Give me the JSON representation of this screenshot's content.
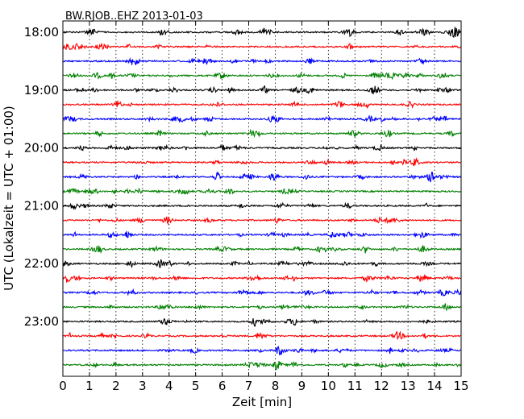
{
  "chart_data": {
    "type": "line",
    "title": "BW.RJOB..EHZ 2013-01-03",
    "xlabel": "Zeit  [min]",
    "ylabel": "UTC (Lokalzeit = UTC + 01:00)",
    "xlim": [
      0,
      15
    ],
    "x_ticks": [
      "0",
      "1",
      "2",
      "3",
      "4",
      "5",
      "6",
      "7",
      "8",
      "9",
      "10",
      "11",
      "12",
      "13",
      "14",
      "15"
    ],
    "y_ticks": [
      {
        "label": "18:00",
        "row": 0
      },
      {
        "label": "19:00",
        "row": 4
      },
      {
        "label": "20:00",
        "row": 8
      },
      {
        "label": "21:00",
        "row": 12
      },
      {
        "label": "22:00",
        "row": 16
      },
      {
        "label": "23:00",
        "row": 20
      }
    ],
    "trace_minutes": 15,
    "trace_count": 24,
    "colors": [
      "#000000",
      "#ff0000",
      "#0000ff",
      "#008000"
    ],
    "vertical_grid": "dotted"
  }
}
